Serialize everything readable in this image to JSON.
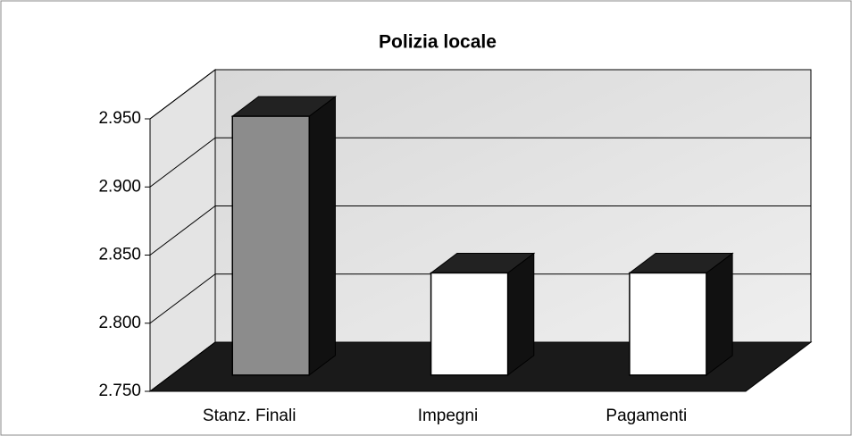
{
  "chart_data": {
    "type": "bar3d",
    "title": "Polizia locale",
    "categories": [
      "Stanz. Finali",
      "Impegni",
      "Pagamenti"
    ],
    "values": [
      2940,
      2825,
      2825
    ],
    "colors": [
      "#8c8c8c",
      "#ffffff",
      "#ffffff"
    ],
    "ylim": [
      2750,
      2950
    ],
    "yticks": [
      {
        "value": 2750,
        "label": "2.750"
      },
      {
        "value": 2800,
        "label": "2.800"
      },
      {
        "value": 2850,
        "label": "2.850"
      },
      {
        "value": 2900,
        "label": "2.900"
      },
      {
        "value": 2950,
        "label": "2.950"
      }
    ],
    "grid": true
  }
}
